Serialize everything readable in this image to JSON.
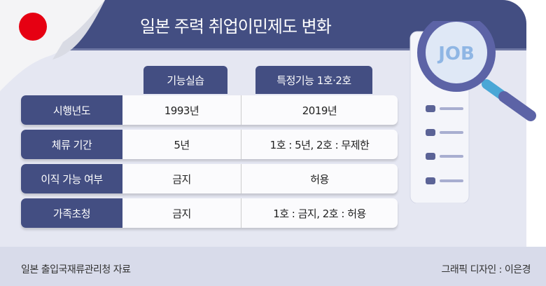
{
  "title": "일본 주력 취업이민제도 변화",
  "columns": [
    "기능실습",
    "특정기능 1호·2호"
  ],
  "rows": [
    {
      "label": "시행년도",
      "c1": "1993년",
      "c2": "2019년"
    },
    {
      "label": "체류 기간",
      "c1": "5년",
      "c2": "1호 : 5년, 2호 : 무제한"
    },
    {
      "label": "이직 가능 여부",
      "c1": "금지",
      "c2": "허용"
    },
    {
      "label": "가족초청",
      "c1": "금지",
      "c2": "1호 : 금지, 2호 : 허용"
    }
  ],
  "illustration": {
    "magnifier_text": "JOB"
  },
  "footer": {
    "source": "일본 출입국재류관리청 자료",
    "credit": "그래픽 디자인 : 이은경"
  },
  "colors": {
    "navy": "#434e82",
    "background": "#e5e7f2",
    "flag_red": "#e60012"
  }
}
